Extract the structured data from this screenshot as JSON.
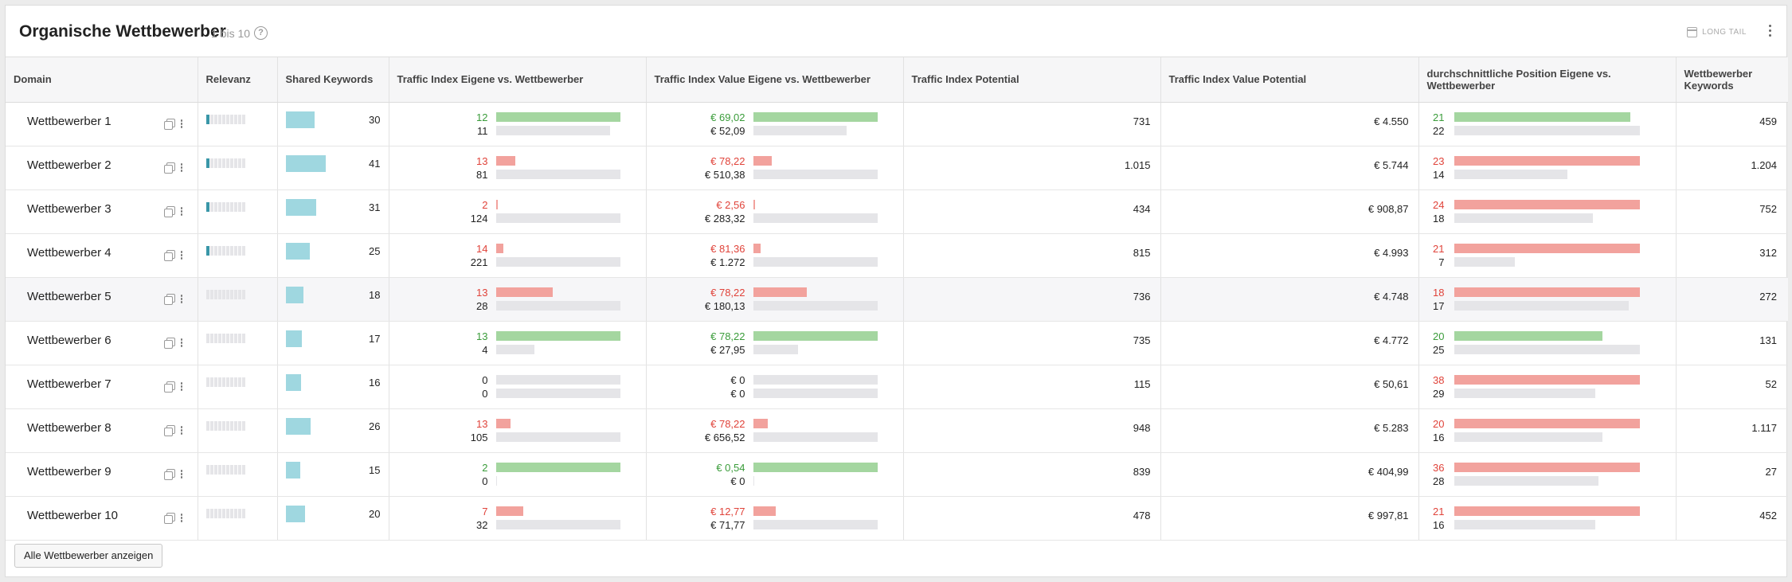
{
  "header": {
    "title": "Organische Wettbewerber",
    "range": "1 bis 10",
    "longtail_label": "LONG TAIL"
  },
  "columns": [
    "Domain",
    "Relevanz",
    "Shared Keywords",
    "Traffic Index Eigene vs. Wettbewerber",
    "Traffic Index Value Eigene vs. Wettbewerber",
    "Traffic Index Potential",
    "Traffic Index Value Potential",
    "durchschnittliche Position Eigene vs. Wettbewerber",
    "Wettbewerber Keywords"
  ],
  "rows": [
    {
      "domain": "Wettbewerber 1",
      "relevance": 1,
      "shared": "30",
      "shared_frac": 0.73,
      "ti_own": "12",
      "ti_own_frac": 1.0,
      "ti_comp": "11",
      "ti_comp_frac": 0.92,
      "ti_color": "green",
      "tiv_own": "€ 69,02",
      "tiv_own_frac": 1.0,
      "tiv_comp": "€ 52,09",
      "tiv_comp_frac": 0.75,
      "potential": "731",
      "value_potential": "€ 4.550",
      "pos_own": "21",
      "pos_own_frac": 0.95,
      "pos_comp": "22",
      "pos_comp_frac": 1.0,
      "pos_color": "green",
      "competitor_kw": "459"
    },
    {
      "domain": "Wettbewerber 2",
      "relevance": 1,
      "shared": "41",
      "shared_frac": 1.0,
      "ti_own": "13",
      "ti_own_frac": 0.16,
      "ti_comp": "81",
      "ti_comp_frac": 1.0,
      "ti_color": "red",
      "tiv_own": "€ 78,22",
      "tiv_own_frac": 0.15,
      "tiv_comp": "€ 510,38",
      "tiv_comp_frac": 1.0,
      "potential": "1.015",
      "value_potential": "€ 5.744",
      "pos_own": "23",
      "pos_own_frac": 1.0,
      "pos_comp": "14",
      "pos_comp_frac": 0.61,
      "pos_color": "red",
      "competitor_kw": "1.204"
    },
    {
      "domain": "Wettbewerber 3",
      "relevance": 1,
      "shared": "31",
      "shared_frac": 0.76,
      "ti_own": "2",
      "ti_own_frac": 0.016,
      "ti_comp": "124",
      "ti_comp_frac": 1.0,
      "ti_color": "red",
      "tiv_own": "€ 2,56",
      "tiv_own_frac": 0.009,
      "tiv_comp": "€ 283,32",
      "tiv_comp_frac": 1.0,
      "potential": "434",
      "value_potential": "€ 908,87",
      "pos_own": "24",
      "pos_own_frac": 1.0,
      "pos_comp": "18",
      "pos_comp_frac": 0.75,
      "pos_color": "red",
      "competitor_kw": "752"
    },
    {
      "domain": "Wettbewerber 4",
      "relevance": 1,
      "shared": "25",
      "shared_frac": 0.61,
      "ti_own": "14",
      "ti_own_frac": 0.06,
      "ti_comp": "221",
      "ti_comp_frac": 1.0,
      "ti_color": "red",
      "tiv_own": "€ 81,36",
      "tiv_own_frac": 0.064,
      "tiv_comp": "€ 1.272",
      "tiv_comp_frac": 1.0,
      "potential": "815",
      "value_potential": "€ 4.993",
      "pos_own": "21",
      "pos_own_frac": 1.0,
      "pos_comp": "7",
      "pos_comp_frac": 0.33,
      "pos_color": "red",
      "competitor_kw": "312"
    },
    {
      "domain": "Wettbewerber 5",
      "relevance": 0,
      "shared": "18",
      "shared_frac": 0.44,
      "ti_own": "13",
      "ti_own_frac": 0.46,
      "ti_comp": "28",
      "ti_comp_frac": 1.0,
      "ti_color": "red",
      "tiv_own": "€ 78,22",
      "tiv_own_frac": 0.43,
      "tiv_comp": "€ 180,13",
      "tiv_comp_frac": 1.0,
      "potential": "736",
      "value_potential": "€ 4.748",
      "pos_own": "18",
      "pos_own_frac": 1.0,
      "pos_comp": "17",
      "pos_comp_frac": 0.94,
      "pos_color": "red",
      "competitor_kw": "272",
      "highlight": true
    },
    {
      "domain": "Wettbewerber 6",
      "relevance": 0,
      "shared": "17",
      "shared_frac": 0.41,
      "ti_own": "13",
      "ti_own_frac": 1.0,
      "ti_comp": "4",
      "ti_comp_frac": 0.31,
      "ti_color": "green",
      "tiv_own": "€ 78,22",
      "tiv_own_frac": 1.0,
      "tiv_comp": "€ 27,95",
      "tiv_comp_frac": 0.36,
      "potential": "735",
      "value_potential": "€ 4.772",
      "pos_own": "20",
      "pos_own_frac": 0.8,
      "pos_comp": "25",
      "pos_comp_frac": 1.0,
      "pos_color": "green",
      "competitor_kw": "131"
    },
    {
      "domain": "Wettbewerber 7",
      "relevance": 0,
      "shared": "16",
      "shared_frac": 0.39,
      "ti_own": "0",
      "ti_own_frac": 0,
      "ti_comp": "0",
      "ti_comp_frac": 0,
      "ti_color": "none",
      "tiv_own": "€ 0",
      "tiv_own_frac": 0,
      "tiv_comp": "€ 0",
      "tiv_comp_frac": 0,
      "potential": "115",
      "value_potential": "€ 50,61",
      "pos_own": "38",
      "pos_own_frac": 1.0,
      "pos_comp": "29",
      "pos_comp_frac": 0.76,
      "pos_color": "red",
      "competitor_kw": "52"
    },
    {
      "domain": "Wettbewerber 8",
      "relevance": 0,
      "shared": "26",
      "shared_frac": 0.63,
      "ti_own": "13",
      "ti_own_frac": 0.12,
      "ti_comp": "105",
      "ti_comp_frac": 1.0,
      "ti_color": "red",
      "tiv_own": "€ 78,22",
      "tiv_own_frac": 0.12,
      "tiv_comp": "€ 656,52",
      "tiv_comp_frac": 1.0,
      "potential": "948",
      "value_potential": "€ 5.283",
      "pos_own": "20",
      "pos_own_frac": 1.0,
      "pos_comp": "16",
      "pos_comp_frac": 0.8,
      "pos_color": "red",
      "competitor_kw": "1.117"
    },
    {
      "domain": "Wettbewerber 9",
      "relevance": 0,
      "shared": "15",
      "shared_frac": 0.37,
      "ti_own": "2",
      "ti_own_frac": 1.0,
      "ti_comp": "0",
      "ti_comp_frac": 0.0,
      "ti_color": "green",
      "tiv_own": "€ 0,54",
      "tiv_own_frac": 1.0,
      "tiv_comp": "€ 0",
      "tiv_comp_frac": 0.0,
      "potential": "839",
      "value_potential": "€ 404,99",
      "pos_own": "36",
      "pos_own_frac": 1.0,
      "pos_comp": "28",
      "pos_comp_frac": 0.78,
      "pos_color": "red",
      "competitor_kw": "27"
    },
    {
      "domain": "Wettbewerber 10",
      "relevance": 0,
      "shared": "20",
      "shared_frac": 0.49,
      "ti_own": "7",
      "ti_own_frac": 0.22,
      "ti_comp": "32",
      "ti_comp_frac": 1.0,
      "ti_color": "red",
      "tiv_own": "€ 12,77",
      "tiv_own_frac": 0.18,
      "tiv_comp": "€ 71,77",
      "tiv_comp_frac": 1.0,
      "potential": "478",
      "value_potential": "€ 997,81",
      "pos_own": "21",
      "pos_own_frac": 1.0,
      "pos_comp": "16",
      "pos_comp_frac": 0.76,
      "pos_color": "red",
      "competitor_kw": "452"
    }
  ],
  "colors": {
    "green_bar": "#a4d6a0",
    "red_bar": "#f2a29d",
    "grey_bar": "#e5e5e8",
    "shared_bar": "#9fd7e0",
    "relevance_on": "#3a97a8"
  },
  "footer": {
    "show_all_label": "Alle Wettbewerber anzeigen"
  }
}
